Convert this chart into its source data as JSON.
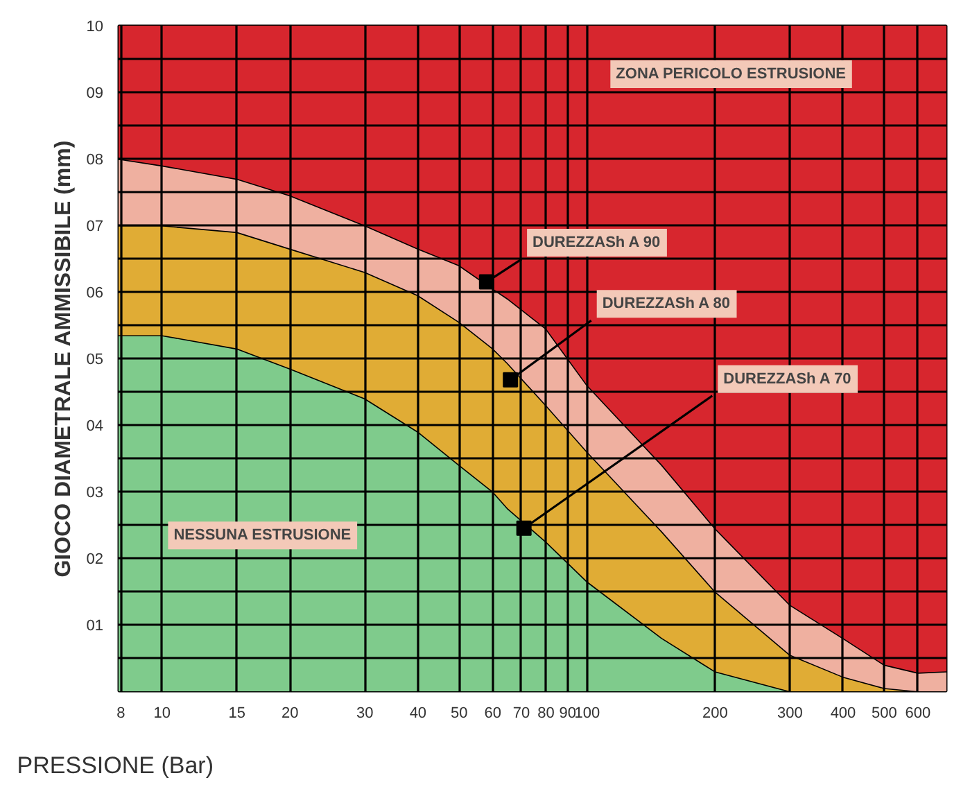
{
  "chart_data": {
    "type": "area",
    "xlabel": "PRESSIONE  (Bar)",
    "ylabel": "GIOCO DIAMETRALE AMMISSIBILE (mm)",
    "log": "x",
    "grid": true,
    "xlim": [
      7.9,
      700
    ],
    "ylim": [
      0,
      10
    ],
    "xticks": [
      8,
      10,
      15,
      20,
      30,
      40,
      50,
      60,
      70,
      80,
      90,
      100,
      200,
      300,
      400,
      500,
      600
    ],
    "yticks": [
      {
        "value": 0.5,
        "label": null
      },
      {
        "value": 1,
        "label": "01"
      },
      {
        "value": 1.5,
        "label": null
      },
      {
        "value": 2,
        "label": "02"
      },
      {
        "value": 2.5,
        "label": null
      },
      {
        "value": 3,
        "label": "03"
      },
      {
        "value": 3.5,
        "label": null
      },
      {
        "value": 4,
        "label": "04"
      },
      {
        "value": 4.5,
        "label": null
      },
      {
        "value": 5,
        "label": "05"
      },
      {
        "value": 5.5,
        "label": null
      },
      {
        "value": 6,
        "label": "06"
      },
      {
        "value": 6.5,
        "label": null
      },
      {
        "value": 7,
        "label": "07"
      },
      {
        "value": 7.5,
        "label": null
      },
      {
        "value": 8,
        "label": "08"
      },
      {
        "value": 8.5,
        "label": null
      },
      {
        "value": 9,
        "label": "09"
      },
      {
        "value": 9.5,
        "label": null
      },
      10
    ],
    "stacked": true,
    "x": [
      7.9,
      10,
      15,
      20,
      30,
      40,
      50,
      60,
      65,
      80,
      100,
      150,
      200,
      300,
      400,
      500,
      600,
      700
    ],
    "series": [
      {
        "color": "#7fcb8c",
        "values": [
          5.35,
          5.35,
          5.15,
          4.85,
          4.4,
          3.9,
          3.4,
          3.0,
          2.75,
          2.25,
          1.65,
          0.8,
          0.3,
          0,
          0,
          0,
          0,
          0
        ]
      },
      {
        "color": "#e0ac35",
        "values": [
          1.65,
          1.65,
          1.75,
          1.8,
          1.9,
          2.05,
          2.15,
          2.15,
          2.18,
          2.05,
          1.95,
          1.6,
          1.2,
          0.55,
          0.22,
          0.05,
          0,
          0
        ]
      },
      {
        "color": "#efb0a0",
        "values": [
          1.0,
          0.9,
          0.8,
          0.8,
          0.7,
          0.7,
          0.85,
          0.9,
          0.97,
          1.15,
          1.0,
          1.0,
          0.95,
          0.75,
          0.58,
          0.35,
          0.28,
          0.3
        ]
      },
      {
        "color": "#d7262e",
        "values": [
          2.0,
          2.1,
          2.3,
          2.55,
          3.0,
          3.35,
          3.6,
          3.95,
          4.1,
          4.55,
          5.4,
          6.6,
          7.55,
          8.7,
          9.2,
          9.6,
          9.72,
          9.7
        ]
      }
    ],
    "annotations": [
      "ZONA PERICOLO ESTRUSIONE",
      {
        "text": "DUREZZASh A 90",
        "x": 58,
        "y": 6.15
      },
      {
        "text": "DUREZZASh A 80",
        "x": 66,
        "y": 4.68
      },
      {
        "text": "DUREZZASh A 70",
        "x": 71,
        "y": 2.45
      },
      "NESSUNA ESTRUSIONE"
    ]
  }
}
